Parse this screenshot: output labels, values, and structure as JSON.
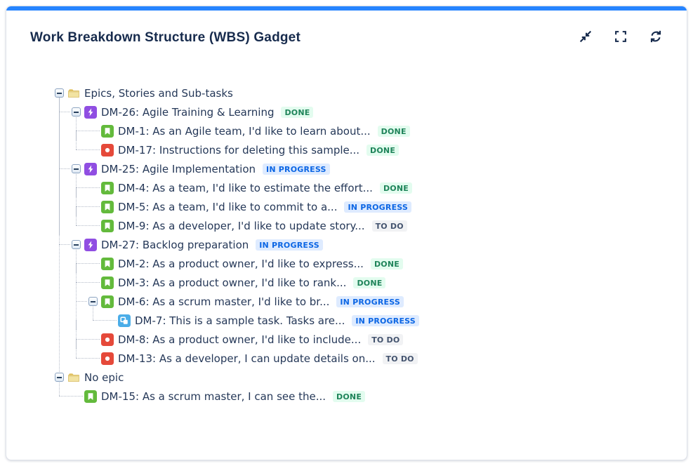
{
  "card": {
    "accent_color": "#2684FF"
  },
  "header": {
    "title": "Work Breakdown Structure (WBS) Gadget",
    "actions": [
      {
        "name": "collapse-all-button",
        "icon": "collapse-icon"
      },
      {
        "name": "fullscreen-button",
        "icon": "fullscreen-icon"
      },
      {
        "name": "refresh-button",
        "icon": "refresh-icon"
      }
    ]
  },
  "status_styles": {
    "done": {
      "label": "DONE",
      "bg": "#E3FCEF",
      "fg": "#1F845A"
    },
    "inprogress": {
      "label": "IN PROGRESS",
      "bg": "#DEEBFF",
      "fg": "#0C66E4"
    },
    "todo": {
      "label": "TO DO",
      "bg": "#F1F2F4",
      "fg": "#44546F"
    }
  },
  "icon_colors": {
    "epic": "#904EE2",
    "story": "#63BA3C",
    "bug": "#E5493A",
    "subtask": "#4BADE8",
    "folder": "#F0D97E"
  },
  "tree": {
    "roots": [
      {
        "label": "Epics, Stories and Sub-tasks",
        "icon": "folder-icon",
        "expanded": true,
        "status": null,
        "children": [
          {
            "label": "DM-26: Agile Training & Learning",
            "icon": "epic-icon",
            "expanded": true,
            "status": {
              "label": "DONE",
              "type": "done"
            },
            "children": [
              {
                "label": "DM-1: As an Agile team, I'd like to learn about...",
                "icon": "story-icon",
                "status": {
                  "label": "DONE",
                  "type": "done"
                }
              },
              {
                "label": "DM-17: Instructions for deleting this sample...",
                "icon": "bug-icon",
                "status": {
                  "label": "DONE",
                  "type": "done"
                }
              }
            ]
          },
          {
            "label": "DM-25: Agile Implementation",
            "icon": "epic-icon",
            "expanded": true,
            "status": {
              "label": "IN PROGRESS",
              "type": "inprogress"
            },
            "children": [
              {
                "label": "DM-4: As a team, I'd like to estimate the effort...",
                "icon": "story-icon",
                "status": {
                  "label": "DONE",
                  "type": "done"
                }
              },
              {
                "label": "DM-5: As a team, I'd like to commit to a...",
                "icon": "story-icon",
                "status": {
                  "label": "IN PROGRESS",
                  "type": "inprogress"
                }
              },
              {
                "label": "DM-9: As a developer, I'd like to update story...",
                "icon": "story-icon",
                "status": {
                  "label": "TO DO",
                  "type": "todo"
                }
              }
            ]
          },
          {
            "label": "DM-27: Backlog preparation",
            "icon": "epic-icon",
            "expanded": true,
            "status": {
              "label": "IN PROGRESS",
              "type": "inprogress"
            },
            "children": [
              {
                "label": "DM-2: As a product owner, I'd like to express...",
                "icon": "story-icon",
                "status": {
                  "label": "DONE",
                  "type": "done"
                }
              },
              {
                "label": "DM-3: As a product owner, I'd like to rank...",
                "icon": "story-icon",
                "status": {
                  "label": "DONE",
                  "type": "done"
                }
              },
              {
                "label": "DM-6: As a scrum master, I'd like to br...",
                "icon": "story-icon",
                "expanded": true,
                "status": {
                  "label": "IN PROGRESS",
                  "type": "inprogress"
                },
                "children": [
                  {
                    "label": "DM-7: This is a sample task. Tasks are...",
                    "icon": "subtask-icon",
                    "status": {
                      "label": "IN PROGRESS",
                      "type": "inprogress"
                    }
                  }
                ]
              },
              {
                "label": "DM-8: As a product owner, I'd like to include...",
                "icon": "bug-icon",
                "status": {
                  "label": "TO DO",
                  "type": "todo"
                }
              },
              {
                "label": "DM-13: As a developer, I can update details on...",
                "icon": "bug-icon",
                "status": {
                  "label": "TO DO",
                  "type": "todo"
                }
              }
            ]
          }
        ]
      },
      {
        "label": "No epic",
        "icon": "folder-icon",
        "expanded": true,
        "status": null,
        "children": [
          {
            "label": "DM-15: As a scrum master, I can see the...",
            "icon": "story-icon",
            "status": {
              "label": "DONE",
              "type": "done"
            }
          }
        ]
      }
    ]
  }
}
